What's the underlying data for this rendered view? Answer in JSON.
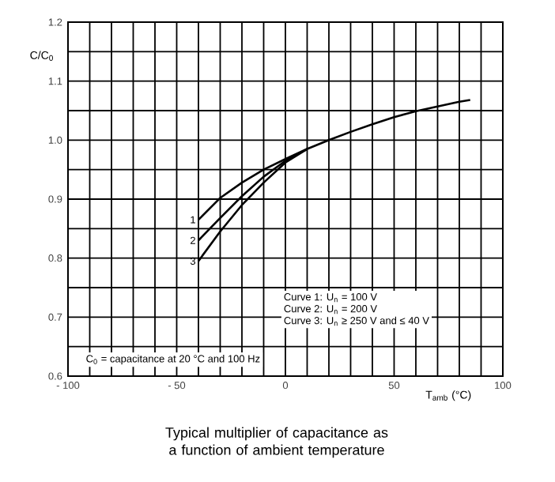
{
  "chart_data": {
    "type": "line",
    "title": "Typical multiplier of capacitance as a function of ambient temperature",
    "xlabel": "T$_{amb}$ (°C)",
    "ylabel": "C/C$_{0}$",
    "xlim": [
      -100,
      100
    ],
    "ylim": [
      0.6,
      1.2
    ],
    "xticks": [
      {
        "value": -100,
        "label": "- 100"
      },
      {
        "value": -90,
        "label": null
      },
      {
        "value": -80,
        "label": null
      },
      {
        "value": -70,
        "label": null
      },
      {
        "value": -60,
        "label": null
      },
      {
        "value": -50,
        "label": "- 50"
      },
      {
        "value": -40,
        "label": null
      },
      {
        "value": -30,
        "label": null
      },
      {
        "value": -20,
        "label": null
      },
      {
        "value": -10,
        "label": null
      },
      {
        "value": 0,
        "label": "0"
      },
      {
        "value": 10,
        "label": null
      },
      {
        "value": 20,
        "label": null
      },
      {
        "value": 30,
        "label": null
      },
      {
        "value": 40,
        "label": null
      },
      {
        "value": 50,
        "label": "50"
      },
      {
        "value": 60,
        "label": null
      },
      {
        "value": 70,
        "label": null
      },
      {
        "value": 80,
        "label": null
      },
      {
        "value": 90,
        "label": null
      },
      {
        "value": 100,
        "label": "100"
      }
    ],
    "yticks": [
      {
        "value": 0.6,
        "label": "0.6"
      },
      {
        "value": 0.65,
        "label": null
      },
      {
        "value": 0.7,
        "label": "0.7"
      },
      {
        "value": 0.75,
        "label": null
      },
      {
        "value": 0.8,
        "label": "0.8"
      },
      {
        "value": 0.85,
        "label": null
      },
      {
        "value": 0.9,
        "label": "0.9"
      },
      {
        "value": 0.95,
        "label": null
      },
      {
        "value": 1.0,
        "label": "1.0"
      },
      {
        "value": 1.05,
        "label": null
      },
      {
        "value": 1.1,
        "label": "1.1"
      },
      {
        "value": 1.15,
        "label": null
      },
      {
        "value": 1.2,
        "label": "1.2"
      }
    ],
    "grid": true,
    "line_style": "solid",
    "series": [
      {
        "name": "1",
        "color": "#000000",
        "x": [
          -40,
          -30,
          -20,
          -10,
          0,
          10,
          20,
          30,
          40,
          50,
          60,
          70,
          80,
          85
        ],
        "values": [
          0.865,
          0.902,
          0.928,
          0.95,
          0.968,
          0.985,
          1.0,
          1.014,
          1.027,
          1.039,
          1.049,
          1.057,
          1.065,
          1.068
        ]
      },
      {
        "name": "2",
        "color": "#000000",
        "x": [
          -40,
          -30,
          -20,
          -10,
          0,
          10
        ],
        "values": [
          0.83,
          0.868,
          0.905,
          0.938,
          0.965,
          0.985
        ]
      },
      {
        "name": "3",
        "color": "#000000",
        "x": [
          -40,
          -30,
          -20,
          -10,
          0,
          10
        ],
        "values": [
          0.795,
          0.845,
          0.89,
          0.928,
          0.962,
          0.985
        ]
      }
    ],
    "annotations": [
      "Curve 1: U$_{n}$ = 100 V",
      "Curve 2: U$_{n}$ = 200 V",
      "Curve 3: U$_{n}$ ≥ 250 V and ≤ 40 V",
      "C$_{0}$ = capacitance at 20 °C and 100 Hz"
    ]
  }
}
